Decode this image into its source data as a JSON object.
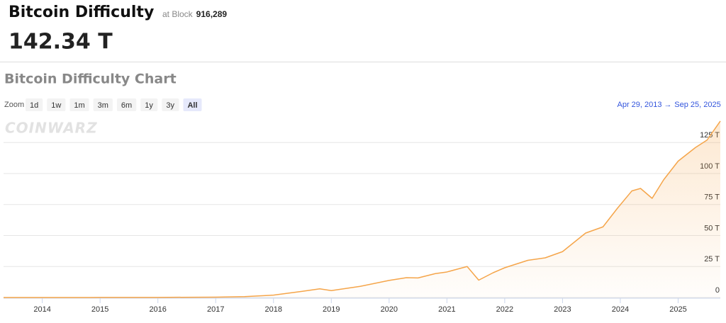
{
  "header": {
    "title": "Bitcoin Difficulty",
    "block_prefix": "at Block",
    "block": "916,289",
    "value": "142.34 T"
  },
  "chart_data": {
    "type": "area",
    "title": "Bitcoin Difficulty Chart",
    "zoom_label": "Zoom",
    "zoom_buttons": [
      "1d",
      "1w",
      "1m",
      "3m",
      "6m",
      "1y",
      "3y",
      "All"
    ],
    "range_start": "Apr 29, 2013",
    "range_separator": "→",
    "range_end": "Sep 25, 2025",
    "watermark": "COINWARZ",
    "x": [
      2013.33,
      2014.0,
      2015.0,
      2016.0,
      2017.0,
      2017.5,
      2018.0,
      2018.5,
      2018.8,
      2019.0,
      2019.5,
      2020.0,
      2020.3,
      2020.5,
      2020.8,
      2021.0,
      2021.35,
      2021.55,
      2021.8,
      2022.0,
      2022.4,
      2022.7,
      2023.0,
      2023.4,
      2023.7,
      2023.95,
      2024.2,
      2024.35,
      2024.55,
      2024.75,
      2025.0,
      2025.3,
      2025.5,
      2025.73
    ],
    "series": [
      {
        "name": "Difficulty",
        "color": "#f5a54a",
        "values": [
          0.01,
          0.0014,
          0.04,
          0.1,
          0.3,
          0.7,
          1.9,
          5,
          7,
          5.6,
          9,
          13.8,
          16,
          15.8,
          19.3,
          20.6,
          25,
          14,
          20,
          24,
          30,
          32,
          37,
          52,
          57,
          72,
          86,
          88,
          80,
          95,
          110,
          121,
          127,
          142.34
        ]
      }
    ],
    "xlim": [
      2013.33,
      2025.73
    ],
    "xticks": [
      2014,
      2015,
      2016,
      2017,
      2018,
      2019,
      2020,
      2021,
      2022,
      2023,
      2024,
      2025
    ],
    "ylim": [
      0,
      144
    ],
    "yticks": [
      0,
      {
        "value": 25,
        "label": "25 T"
      },
      {
        "value": 50,
        "label": "50 T"
      },
      {
        "value": 75,
        "label": "75 T"
      },
      {
        "value": 100,
        "label": "100 T"
      },
      {
        "value": 125,
        "label": "125 T"
      }
    ],
    "grid": true
  }
}
